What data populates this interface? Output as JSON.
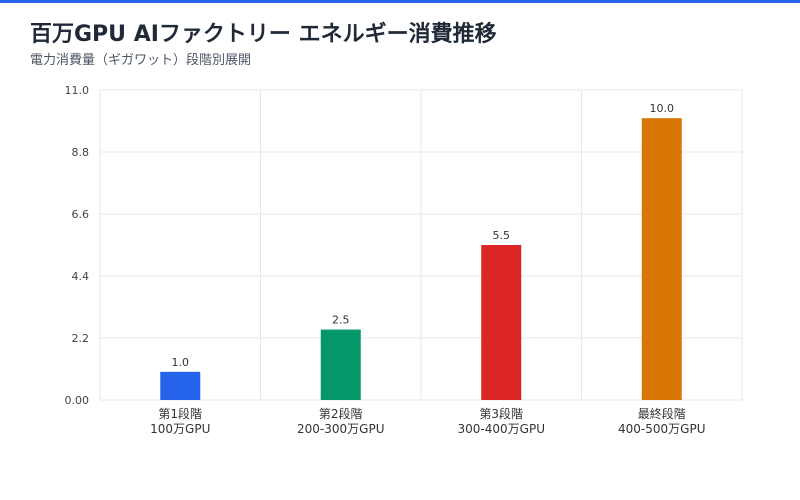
{
  "header": {
    "title": "百万GPU AIファクトリー エネルギー消費推移",
    "subtitle": "電力消費量（ギガワット）段階別展開"
  },
  "colors": {
    "top_bar": "#2563eb",
    "grid": "#e5e7eb"
  },
  "chart_data": {
    "type": "bar",
    "title": "百万GPU AIファクトリー エネルギー消費推移",
    "subtitle": "電力消費量（ギガワット）段階別展開",
    "categories": [
      [
        "第1段階",
        "100万GPU"
      ],
      [
        "第2段階",
        "200-300万GPU"
      ],
      [
        "第3段階",
        "300-400万GPU"
      ],
      [
        "最終段階",
        "400-500万GPU"
      ]
    ],
    "values": [
      1.0,
      2.5,
      5.5,
      10.0
    ],
    "value_labels": [
      "1.0",
      "2.5",
      "5.5",
      "10.0"
    ],
    "bar_colors": [
      "#2563eb",
      "#059669",
      "#dc2626",
      "#d97706"
    ],
    "ylim": [
      0,
      11
    ],
    "yticks": [
      0,
      2.2,
      4.4,
      6.6,
      8.8,
      11.0
    ],
    "ytick_labels": [
      "0.00",
      "2.2",
      "4.4",
      "6.6",
      "8.8",
      "11.0"
    ],
    "grid": true,
    "legend": false,
    "xlabel": "",
    "ylabel": ""
  }
}
